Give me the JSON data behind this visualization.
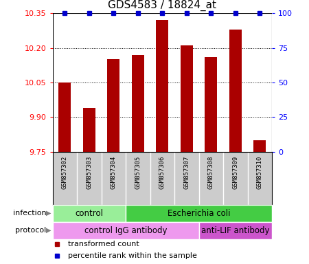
{
  "title": "GDS4583 / 18824_at",
  "samples": [
    "GSM857302",
    "GSM857303",
    "GSM857304",
    "GSM857305",
    "GSM857306",
    "GSM857307",
    "GSM857308",
    "GSM857309",
    "GSM857310"
  ],
  "transformed_count": [
    10.05,
    9.94,
    10.15,
    10.17,
    10.32,
    10.21,
    10.16,
    10.28,
    9.8
  ],
  "percentile_rank": [
    100,
    100,
    100,
    100,
    100,
    100,
    100,
    100,
    100
  ],
  "ylim_left": [
    9.75,
    10.35
  ],
  "yticks_left": [
    9.75,
    9.9,
    10.05,
    10.2,
    10.35
  ],
  "yticks_right": [
    0,
    25,
    50,
    75,
    100
  ],
  "bar_color": "#AA0000",
  "percentile_color": "#0000CC",
  "infection_groups": [
    {
      "label": "control",
      "start": 0,
      "end": 3,
      "color": "#99EE99"
    },
    {
      "label": "Escherichia coli",
      "start": 3,
      "end": 9,
      "color": "#44CC44"
    }
  ],
  "protocol_groups": [
    {
      "label": "control IgG antibody",
      "start": 0,
      "end": 6,
      "color": "#EE99EE"
    },
    {
      "label": "anti-LIF antibody",
      "start": 6,
      "end": 9,
      "color": "#CC55CC"
    }
  ],
  "legend_items": [
    {
      "label": "transformed count",
      "color": "#AA0000"
    },
    {
      "label": "percentile rank within the sample",
      "color": "#0000CC"
    }
  ],
  "bg_color": "#CCCCCC",
  "title_fontsize": 11,
  "bar_width": 0.5
}
